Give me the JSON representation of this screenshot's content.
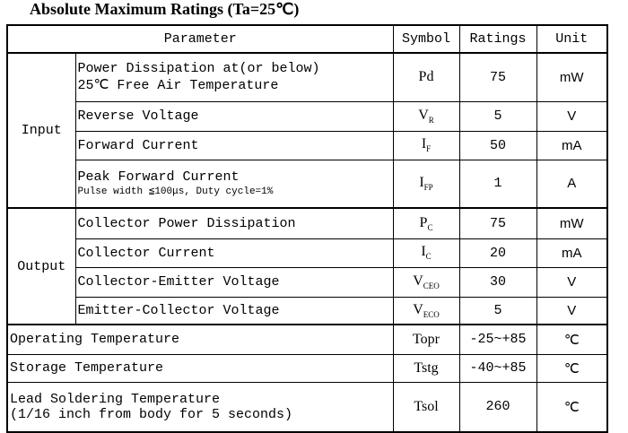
{
  "title": "Absolute Maximum Ratings (Ta=25℃)",
  "table": {
    "header": [
      "Parameter",
      "Symbol",
      "Ratings",
      "Unit"
    ],
    "groups": [
      {
        "name": "Input",
        "rows": [
          {
            "parameter": "Power Dissipation at(or below)",
            "parameter_line2": "25℃ Free Air Temperature",
            "symbol": "Pd",
            "ratings": 75,
            "unit": "mW"
          },
          {
            "parameter": "Reverse Voltage",
            "symbol": "V",
            "symbol_sub": "R",
            "ratings": 5,
            "unit": "V"
          },
          {
            "parameter": "Forward Current",
            "symbol": "I",
            "symbol_sub": "F",
            "ratings": 50,
            "unit": "mA"
          },
          {
            "parameter": "Peak Forward Current",
            "note": "Pulse width ≦100μs, Duty cycle=1%",
            "symbol": "I",
            "symbol_sub": "FP",
            "ratings": 1,
            "unit": "A"
          }
        ]
      },
      {
        "name": "Output",
        "rows": [
          {
            "parameter": "Collector Power Dissipation",
            "symbol": "P",
            "symbol_sub": "C",
            "ratings": 75,
            "unit": "mW"
          },
          {
            "parameter": "Collector Current",
            "symbol": "I",
            "symbol_sub": "C",
            "ratings": 20,
            "unit": "mA"
          },
          {
            "parameter": "Collector-Emitter Voltage",
            "symbol": "V",
            "symbol_sub": "CEO",
            "ratings": 30,
            "unit": "V"
          },
          {
            "parameter": "Emitter-Collector Voltage",
            "symbol": "V",
            "symbol_sub": "ECO",
            "ratings": 5,
            "unit": "V"
          }
        ]
      }
    ],
    "other_rows": [
      {
        "parameter": "Operating Temperature",
        "symbol": "Topr",
        "ratings": "-25~+85",
        "unit": "℃"
      },
      {
        "parameter": "Storage Temperature",
        "symbol": "Tstg",
        "ratings": "-40~+85",
        "unit": "℃"
      },
      {
        "parameter": "Lead Soldering Temperature",
        "parameter_line2": "(1/16 inch from body for 5 seconds)",
        "symbol": "Tsol",
        "ratings": 260,
        "unit": "℃"
      }
    ]
  }
}
